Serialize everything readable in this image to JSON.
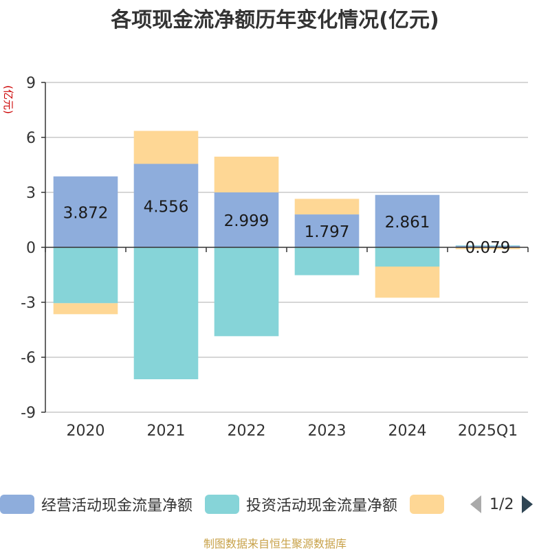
{
  "chart_data": {
    "type": "bar",
    "stacked": true,
    "title": "各项现金流净额历年变化情况(亿元)",
    "ylabel": "(亿元)",
    "xlabel": "",
    "categories": [
      "2020",
      "2021",
      "2022",
      "2023",
      "2024",
      "2025Q1"
    ],
    "ylim": [
      -9,
      9
    ],
    "yticks": [
      9,
      6,
      3,
      0,
      -3,
      -6,
      -9
    ],
    "grid": true,
    "legend_position": "bottom",
    "series": [
      {
        "name": "经营活动现金流量净额",
        "color": "#8eaddc",
        "values": [
          3.872,
          4.556,
          2.999,
          1.797,
          2.861,
          0.079
        ],
        "show_labels": true
      },
      {
        "name": "投资活动现金流量净额",
        "color": "#86d4d8",
        "values": [
          -3.05,
          -7.2,
          -4.85,
          -1.52,
          -1.05,
          0.03
        ]
      },
      {
        "name": "",
        "color": "#fed795",
        "values": [
          -0.6,
          1.8,
          1.95,
          0.85,
          -1.7,
          -0.1
        ]
      }
    ]
  },
  "legend": {
    "pager": "1/2"
  },
  "source_note": "制图数据来自恒生聚源数据库",
  "colors": {
    "axis_label": "#cc0000",
    "source_note": "#c8a24a"
  }
}
